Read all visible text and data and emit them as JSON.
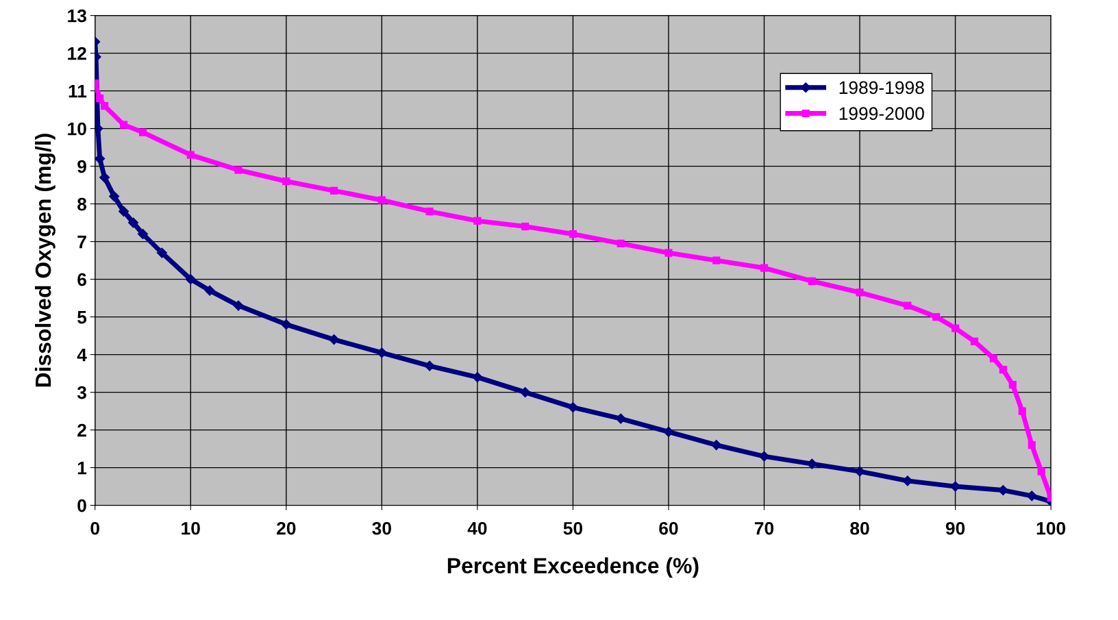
{
  "chart_data": {
    "type": "line",
    "xlabel": "Percent Exceedence (%)",
    "ylabel": "Dissolved Oxygen (mg/l)",
    "xlim": [
      0,
      100
    ],
    "ylim": [
      0,
      13
    ],
    "xticks": [
      0,
      10,
      20,
      30,
      40,
      50,
      60,
      70,
      80,
      90,
      100
    ],
    "yticks": [
      0,
      1,
      2,
      3,
      4,
      5,
      6,
      7,
      8,
      9,
      10,
      11,
      12,
      13
    ],
    "grid": true,
    "legend": "top right",
    "series": [
      {
        "name": "1989-1998",
        "color": "#000080",
        "marker": "diamond",
        "x": [
          0,
          0.1,
          0.3,
          0.5,
          1,
          2,
          3,
          4,
          5,
          7,
          10,
          12,
          15,
          20,
          25,
          30,
          35,
          40,
          45,
          50,
          55,
          60,
          65,
          70,
          75,
          80,
          85,
          90,
          95,
          98,
          100
        ],
        "values": [
          12.3,
          11.9,
          10,
          9.2,
          8.7,
          8.2,
          7.8,
          7.5,
          7.2,
          6.7,
          6.0,
          5.7,
          5.3,
          4.8,
          4.4,
          4.05,
          3.7,
          3.4,
          3.0,
          2.6,
          2.3,
          1.95,
          1.6,
          1.3,
          1.1,
          0.9,
          0.65,
          0.5,
          0.4,
          0.25,
          0.1
        ]
      },
      {
        "name": "1999-2000",
        "color": "#ff00ff",
        "marker": "square",
        "x": [
          0,
          0.5,
          1,
          3,
          5,
          10,
          15,
          20,
          25,
          30,
          35,
          40,
          45,
          50,
          55,
          60,
          65,
          70,
          75,
          80,
          85,
          88,
          90,
          92,
          94,
          95,
          96,
          97,
          98,
          99,
          100
        ],
        "values": [
          11.2,
          10.8,
          10.6,
          10.1,
          9.9,
          9.3,
          8.9,
          8.6,
          8.35,
          8.1,
          7.8,
          7.55,
          7.4,
          7.2,
          6.95,
          6.7,
          6.5,
          6.3,
          5.95,
          5.65,
          5.3,
          5.0,
          4.7,
          4.35,
          3.9,
          3.6,
          3.2,
          2.5,
          1.6,
          0.9,
          0.2
        ]
      }
    ]
  }
}
